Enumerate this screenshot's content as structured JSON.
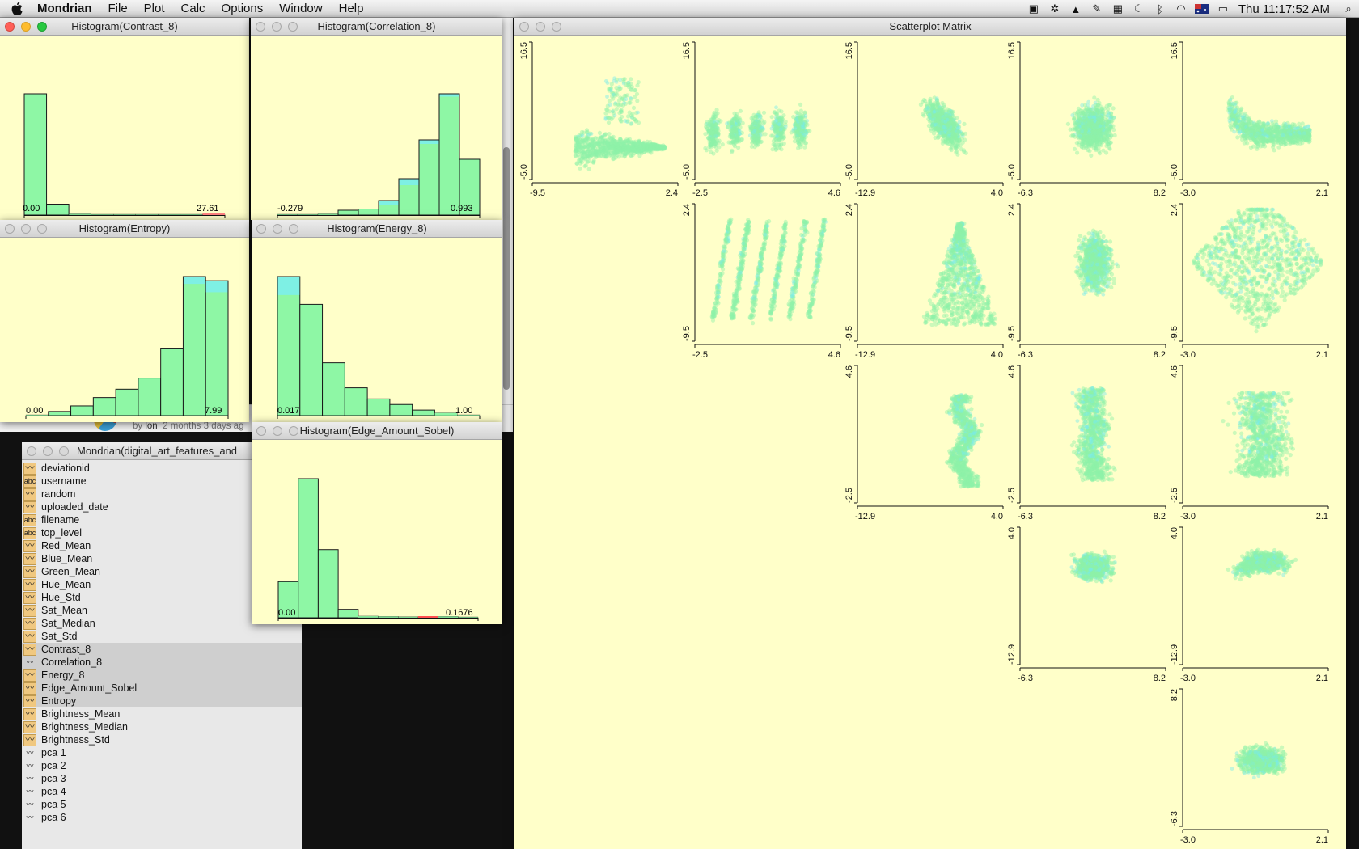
{
  "menubar": {
    "app_name": "Mondrian",
    "items": [
      "File",
      "Plot",
      "Calc",
      "Options",
      "Window",
      "Help"
    ],
    "clock": "Thu 11:17:52 AM"
  },
  "background": {
    "byline_prefix": "by",
    "byline_user": "lon",
    "byline_time": "2 months 3 days ag"
  },
  "windows": {
    "contrast": {
      "title": "Histogram(Contrast_8)",
      "min_label": "0.00",
      "max_label": "27.61"
    },
    "correlation": {
      "title": "Histogram(Correlation_8)",
      "min_label": "-0.279",
      "max_label": "0.993"
    },
    "entropy": {
      "title": "Histogram(Entropy)",
      "min_label": "0.00",
      "max_label": "7.99"
    },
    "energy": {
      "title": "Histogram(Energy_8)",
      "min_label": "0.017",
      "max_label": "1.00"
    },
    "edge": {
      "title": "Histogram(Edge_Amount_Sobel)",
      "min_label": "0.00",
      "max_label": "0.1676"
    },
    "variables": {
      "title": "Mondrian(digital_art_features_and"
    },
    "scatter": {
      "title": "Scatterplot Matrix"
    }
  },
  "variables": [
    {
      "name": "deviationid",
      "type": "num",
      "selected": false
    },
    {
      "name": "username",
      "type": "str",
      "selected": false
    },
    {
      "name": "random",
      "type": "num",
      "selected": false
    },
    {
      "name": "uploaded_date",
      "type": "num",
      "selected": false
    },
    {
      "name": "filename",
      "type": "str",
      "selected": false
    },
    {
      "name": "top_level",
      "type": "str",
      "selected": false
    },
    {
      "name": "Red_Mean",
      "type": "num",
      "selected": false
    },
    {
      "name": "Blue_Mean",
      "type": "num",
      "selected": false
    },
    {
      "name": "Green_Mean",
      "type": "num",
      "selected": false
    },
    {
      "name": "Hue_Mean",
      "type": "num",
      "selected": false
    },
    {
      "name": "Hue_Std",
      "type": "num",
      "selected": false
    },
    {
      "name": "Sat_Mean",
      "type": "num",
      "selected": false
    },
    {
      "name": "Sat_Median",
      "type": "num",
      "selected": false
    },
    {
      "name": "Sat_Std",
      "type": "num",
      "selected": false
    },
    {
      "name": "Contrast_8",
      "type": "num",
      "selected": true
    },
    {
      "name": "Correlation_8",
      "type": "plain",
      "selected": true
    },
    {
      "name": "Energy_8",
      "type": "num",
      "selected": true
    },
    {
      "name": "Edge_Amount_Sobel",
      "type": "num",
      "selected": true
    },
    {
      "name": "Entropy",
      "type": "num",
      "selected": true
    },
    {
      "name": "Brightness_Mean",
      "type": "num",
      "selected": false
    },
    {
      "name": "Brightness_Median",
      "type": "num",
      "selected": false
    },
    {
      "name": "Brightness_Std",
      "type": "num",
      "selected": false
    },
    {
      "name": "pca 1",
      "type": "plain",
      "selected": false
    },
    {
      "name": "pca 2",
      "type": "plain",
      "selected": false
    },
    {
      "name": "pca 3",
      "type": "plain",
      "selected": false
    },
    {
      "name": "pca 4",
      "type": "plain",
      "selected": false
    },
    {
      "name": "pca 5",
      "type": "plain",
      "selected": false
    },
    {
      "name": "pca 6",
      "type": "plain",
      "selected": false
    }
  ],
  "colors": {
    "plot_bg": "#ffffc9",
    "bar_fill": "#8ef7a5",
    "highlight": "#7ef0e4",
    "point_main": "#8ef2a8",
    "point_highlight": "#78ecec"
  },
  "chart_data": [
    {
      "id": "contrast",
      "type": "bar",
      "title": "Histogram(Contrast_8)",
      "xlim": [
        0.0,
        27.61
      ],
      "values": [
        1.0,
        0.09,
        0.01,
        0.004,
        0.003,
        0.002,
        0.002,
        0.002,
        0.001
      ],
      "highlight": [
        0,
        0,
        0,
        0,
        0,
        0,
        0,
        0,
        0
      ],
      "marks": [
        {
          "bin": 8,
          "color": "#ff8080"
        }
      ]
    },
    {
      "id": "correlation",
      "type": "bar",
      "title": "Histogram(Correlation_8)",
      "xlim": [
        -0.279,
        0.993
      ],
      "values": [
        0.003,
        0.005,
        0.01,
        0.04,
        0.05,
        0.12,
        0.3,
        0.62,
        1.0,
        0.46
      ],
      "highlight": [
        0,
        0,
        0,
        0,
        0,
        0.03,
        0.05,
        0.03,
        0.02,
        0
      ]
    },
    {
      "id": "entropy",
      "type": "bar",
      "title": "Histogram(Entropy)",
      "xlim": [
        0.0,
        7.99
      ],
      "values": [
        0.005,
        0.03,
        0.07,
        0.13,
        0.19,
        0.27,
        0.48,
        1.0,
        0.97
      ],
      "highlight": [
        0,
        0,
        0,
        0,
        0,
        0,
        0,
        0.05,
        0.08
      ]
    },
    {
      "id": "energy",
      "type": "bar",
      "title": "Histogram(Energy_8)",
      "xlim": [
        0.017,
        1.0
      ],
      "values": [
        1.0,
        0.8,
        0.38,
        0.2,
        0.12,
        0.08,
        0.04,
        0.02,
        0.005
      ],
      "highlight": [
        0.13,
        0,
        0,
        0,
        0,
        0,
        0,
        0,
        0
      ]
    },
    {
      "id": "edge",
      "type": "bar",
      "title": "Histogram(Edge_Amount_Sobel)",
      "xlim": [
        0.0,
        0.1676
      ],
      "values": [
        0.26,
        1.0,
        0.49,
        0.06,
        0.012,
        0.01,
        0.008,
        0.006,
        0.01,
        0.004
      ],
      "highlight": [
        0,
        0,
        0,
        0,
        0,
        0,
        0,
        0,
        0,
        0
      ],
      "marks": [
        {
          "bin": 7,
          "color": "#ff5050"
        }
      ]
    },
    {
      "id": "scatterplot-matrix",
      "type": "scatter",
      "title": "Scatterplot Matrix",
      "cells": [
        {
          "row": 0,
          "col": 0,
          "x_range": [
            "-9.5",
            "2.4"
          ],
          "y_range": [
            "-5.0",
            "16.5"
          ],
          "shape": "wedge"
        },
        {
          "row": 0,
          "col": 1,
          "x_range": [
            "-2.5",
            "4.6"
          ],
          "y_range": [
            "-5.0",
            "16.5"
          ],
          "shape": "stripes-h"
        },
        {
          "row": 0,
          "col": 2,
          "x_range": [
            "-12.9",
            "4.0"
          ],
          "y_range": [
            "-5.0",
            "16.5"
          ],
          "shape": "diag"
        },
        {
          "row": 0,
          "col": 3,
          "x_range": [
            "-6.3",
            "8.2"
          ],
          "y_range": [
            "-5.0",
            "16.5"
          ],
          "shape": "blob"
        },
        {
          "row": 0,
          "col": 4,
          "x_range": [
            "-3.0",
            "2.1"
          ],
          "y_range": [
            "-5.0",
            "16.5"
          ],
          "shape": "arrow"
        },
        {
          "row": 1,
          "col": 1,
          "x_range": [
            "-2.5",
            "4.6"
          ],
          "y_range": [
            "-9.5",
            "2.4"
          ],
          "shape": "stripes-d"
        },
        {
          "row": 1,
          "col": 2,
          "x_range": [
            "-12.9",
            "4.0"
          ],
          "y_range": [
            "-9.5",
            "2.4"
          ],
          "shape": "tri"
        },
        {
          "row": 1,
          "col": 3,
          "x_range": [
            "-6.3",
            "8.2"
          ],
          "y_range": [
            "-9.5",
            "2.4"
          ],
          "shape": "vblob"
        },
        {
          "row": 1,
          "col": 4,
          "x_range": [
            "-3.0",
            "2.1"
          ],
          "y_range": [
            "-9.5",
            "2.4"
          ],
          "shape": "diamond"
        },
        {
          "row": 2,
          "col": 2,
          "x_range": [
            "-12.9",
            "4.0"
          ],
          "y_range": [
            "-2.5",
            "4.6"
          ],
          "shape": "zig"
        },
        {
          "row": 2,
          "col": 3,
          "x_range": [
            "-6.3",
            "8.2"
          ],
          "y_range": [
            "-2.5",
            "4.6"
          ],
          "shape": "column"
        },
        {
          "row": 2,
          "col": 4,
          "x_range": [
            "-3.0",
            "2.1"
          ],
          "y_range": [
            "-2.5",
            "4.6"
          ],
          "shape": "band"
        },
        {
          "row": 3,
          "col": 3,
          "x_range": [
            "-6.3",
            "8.2"
          ],
          "y_range": [
            "-12.9",
            "4.0"
          ],
          "shape": "small"
        },
        {
          "row": 3,
          "col": 4,
          "x_range": [
            "-3.0",
            "2.1"
          ],
          "y_range": [
            "-12.9",
            "4.0"
          ],
          "shape": "hband"
        },
        {
          "row": 4,
          "col": 4,
          "x_range": [
            "-3.0",
            "2.1"
          ],
          "y_range": [
            "-6.3",
            "8.2"
          ],
          "shape": "ellipse"
        }
      ]
    }
  ]
}
